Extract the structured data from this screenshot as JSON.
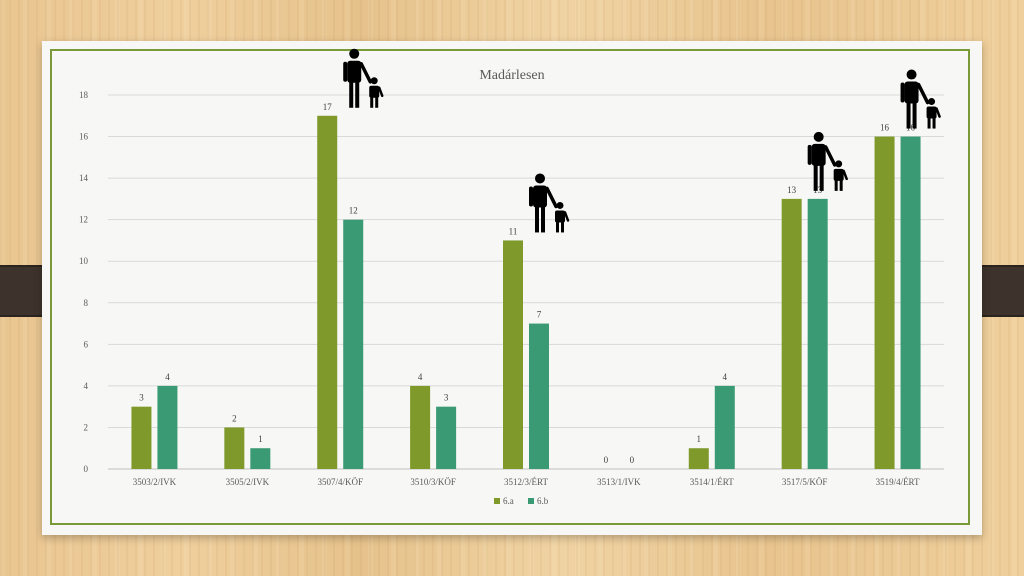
{
  "chart_data": {
    "type": "bar",
    "title": "Madárlesen",
    "categories": [
      "3503/2/IVK",
      "3505/2/IVK",
      "3507/4/KÖF",
      "3510/3/KÖF",
      "3512/3/ÉRT",
      "3513/1/IVK",
      "3514/1/ÉRT",
      "3517/5/KÖF",
      "3519/4/ÉRT"
    ],
    "series": [
      {
        "name": "6.a",
        "values": [
          3,
          2,
          17,
          4,
          11,
          0,
          1,
          13,
          16
        ],
        "color": "#7f9a2a"
      },
      {
        "name": "6.b",
        "values": [
          4,
          1,
          12,
          3,
          7,
          0,
          4,
          13,
          16
        ],
        "color": "#3a9a74"
      }
    ],
    "ylim": [
      0,
      18
    ],
    "yticks": [
      0,
      2,
      4,
      6,
      8,
      10,
      12,
      14,
      16,
      18
    ],
    "grid": true,
    "legend": "bottom",
    "family_icon_categories": [
      "3507/4/KÖF",
      "3512/3/ÉRT",
      "3517/5/KÖF",
      "3519/4/ÉRT"
    ],
    "family_icon": "parent-child-icon"
  }
}
